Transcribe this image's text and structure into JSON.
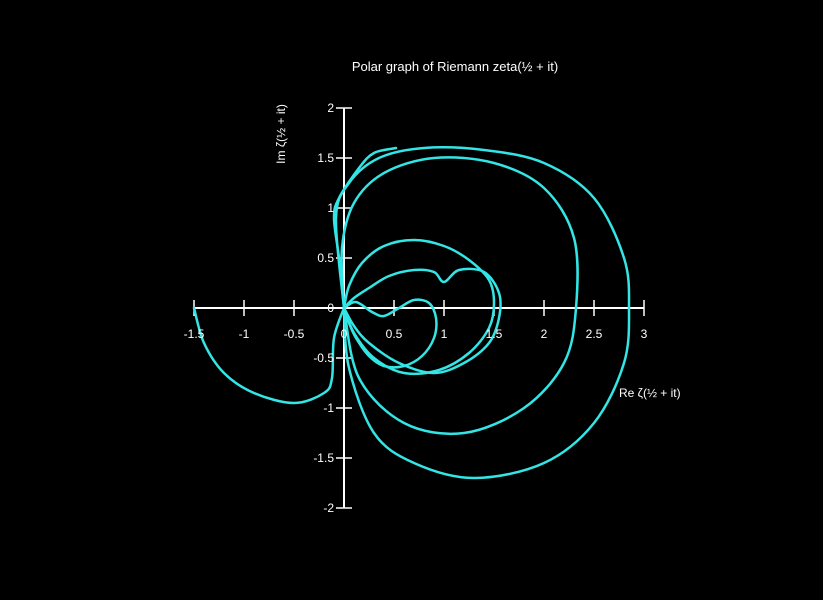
{
  "chart_data": {
    "type": "line",
    "title": "Polar graph of Riemann zeta(½ + it)",
    "xlabel": "Re ζ(½ + it)",
    "ylabel": "Im ζ(½ + it)",
    "xlim": [
      -1.5,
      3
    ],
    "ylim": [
      -2,
      2
    ],
    "x_ticks": [
      -1.5,
      -1,
      -0.5,
      0,
      0.5,
      1,
      1.5,
      2,
      2.5,
      3
    ],
    "x_tick_labels": [
      "-1.5",
      "-1",
      "-0.5",
      "0",
      "0.5",
      "1",
      "1.5",
      "2",
      "2.5",
      "3"
    ],
    "y_ticks": [
      -2,
      -1.5,
      -1,
      -0.5,
      0,
      0.5,
      1,
      1.5,
      2
    ],
    "y_tick_labels": [
      "-2",
      "-1.5",
      "-1",
      "-0.5",
      "0",
      "0.5",
      "1",
      "1.5",
      "2"
    ],
    "grid": false,
    "line_color": "#33e5e5",
    "background": "#000000",
    "axis_color": "#ffffff",
    "series": [
      {
        "values": [
          [
            0.0,
            0.0
          ],
          [
            0.05,
            -0.15
          ],
          [
            0.12,
            -0.3
          ],
          [
            0.25,
            -0.48
          ],
          [
            0.4,
            -0.58
          ],
          [
            0.6,
            -0.58
          ],
          [
            0.78,
            -0.48
          ],
          [
            0.9,
            -0.3
          ],
          [
            0.92,
            -0.1
          ],
          [
            0.85,
            0.05
          ],
          [
            0.7,
            0.08
          ],
          [
            0.55,
            0.0
          ],
          [
            0.4,
            -0.08
          ],
          [
            0.28,
            -0.04
          ],
          [
            0.12,
            0.06
          ],
          [
            0.0,
            0.0
          ]
        ]
      },
      {
        "values": [
          [
            0.0,
            0.0
          ],
          [
            0.1,
            0.1
          ],
          [
            0.25,
            0.2
          ],
          [
            0.45,
            0.32
          ],
          [
            0.7,
            0.38
          ],
          [
            0.9,
            0.36
          ],
          [
            1.0,
            0.26
          ],
          [
            1.15,
            0.38
          ],
          [
            1.4,
            0.36
          ],
          [
            1.55,
            0.15
          ],
          [
            1.55,
            -0.1
          ],
          [
            1.45,
            -0.35
          ],
          [
            1.2,
            -0.55
          ],
          [
            0.9,
            -0.65
          ],
          [
            0.55,
            -0.55
          ],
          [
            0.25,
            -0.35
          ],
          [
            0.1,
            -0.18
          ],
          [
            0.0,
            0.0
          ]
        ]
      },
      {
        "values": [
          [
            0.0,
            0.0
          ],
          [
            0.05,
            0.22
          ],
          [
            0.18,
            0.45
          ],
          [
            0.4,
            0.62
          ],
          [
            0.7,
            0.68
          ],
          [
            1.0,
            0.62
          ],
          [
            1.25,
            0.48
          ],
          [
            1.45,
            0.28
          ],
          [
            1.5,
            0.05
          ],
          [
            1.45,
            -0.2
          ],
          [
            1.25,
            -0.45
          ],
          [
            0.95,
            -0.62
          ],
          [
            0.6,
            -0.65
          ],
          [
            0.3,
            -0.5
          ],
          [
            0.1,
            -0.25
          ],
          [
            0.0,
            0.0
          ]
        ]
      },
      {
        "values": [
          [
            0.0,
            0.0
          ],
          [
            -0.02,
            0.6
          ],
          [
            0.1,
            1.05
          ],
          [
            0.4,
            1.35
          ],
          [
            0.9,
            1.5
          ],
          [
            1.5,
            1.45
          ],
          [
            2.0,
            1.2
          ],
          [
            2.3,
            0.7
          ],
          [
            2.32,
            0.0
          ],
          [
            2.2,
            -0.55
          ],
          [
            1.8,
            -1.0
          ],
          [
            1.2,
            -1.25
          ],
          [
            0.6,
            -1.15
          ],
          [
            0.15,
            -0.7
          ],
          [
            0.0,
            0.0
          ]
        ]
      },
      {
        "values": [
          [
            0.0,
            0.0
          ],
          [
            -0.08,
            0.9
          ],
          [
            0.05,
            1.25
          ],
          [
            0.35,
            1.5
          ],
          [
            0.8,
            1.6
          ],
          [
            1.4,
            1.58
          ],
          [
            2.0,
            1.45
          ],
          [
            2.5,
            1.1
          ],
          [
            2.8,
            0.5
          ],
          [
            2.85,
            0.0
          ],
          [
            2.8,
            -0.55
          ],
          [
            2.5,
            -1.15
          ],
          [
            2.0,
            -1.55
          ],
          [
            1.3,
            -1.7
          ],
          [
            0.7,
            -1.55
          ],
          [
            0.3,
            -1.25
          ],
          [
            0.05,
            -0.6
          ],
          [
            0.0,
            0.0
          ]
        ]
      },
      {
        "values": [
          [
            0.0,
            0.0
          ],
          [
            -0.05,
            0.5
          ],
          [
            -0.1,
            0.9
          ],
          [
            -0.05,
            1.1
          ],
          [
            0.15,
            1.4
          ],
          [
            0.3,
            1.55
          ],
          [
            0.52,
            1.6
          ]
        ]
      },
      {
        "values": [
          [
            0.0,
            0.0
          ],
          [
            -0.1,
            -0.3
          ],
          [
            -0.12,
            -0.7
          ],
          [
            -0.2,
            -0.85
          ],
          [
            -0.5,
            -0.95
          ],
          [
            -0.9,
            -0.85
          ],
          [
            -1.2,
            -0.65
          ],
          [
            -1.4,
            -0.35
          ],
          [
            -1.5,
            0.0
          ]
        ]
      }
    ]
  }
}
